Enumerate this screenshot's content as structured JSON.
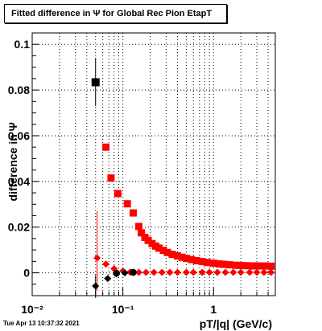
{
  "title": "Fitted difference in  Ψ  for Global Rec Pion EtapT",
  "timestamp": "Tue Apr 13 10:37:32 2021",
  "chart_data": {
    "type": "scatter",
    "x_scale": "log",
    "xlim": [
      0.01,
      4.8
    ],
    "ylim": [
      -0.01,
      0.105
    ],
    "grid": true,
    "xlabel": "pT/|q| (GeV/c)",
    "ylabel": "difference in  Ψ",
    "x_ticks": [
      {
        "value": 0.01,
        "label": "10⁻²"
      },
      {
        "value": 0.1,
        "label": "10⁻¹"
      },
      {
        "value": 1,
        "label": "1"
      }
    ],
    "y_ticks": [
      {
        "value": 0,
        "label": "0"
      },
      {
        "value": 0.02,
        "label": "0.02"
      },
      {
        "value": 0.04,
        "label": "0.04"
      },
      {
        "value": 0.06,
        "label": "0.06"
      },
      {
        "value": 0.08,
        "label": "0.08"
      },
      {
        "value": 0.1,
        "label": "0.1"
      }
    ],
    "series": [
      {
        "color": "#ff0000",
        "marker": "square",
        "points": [
          [
            0.065,
            0.055
          ],
          [
            0.074,
            0.0415
          ],
          [
            0.088,
            0.0347
          ],
          [
            0.112,
            0.0302
          ],
          [
            0.13,
            0.0262
          ],
          [
            0.15,
            0.0203
          ],
          [
            0.16,
            0.0175
          ],
          [
            0.175,
            0.0155
          ],
          [
            0.19,
            0.0142
          ],
          [
            0.21,
            0.0128
          ],
          [
            0.23,
            0.0117
          ],
          [
            0.25,
            0.0108
          ],
          [
            0.28,
            0.0098
          ],
          [
            0.31,
            0.0089
          ],
          [
            0.35,
            0.0081
          ],
          [
            0.4,
            0.0074
          ],
          [
            0.45,
            0.0068
          ],
          [
            0.5,
            0.0063
          ],
          [
            0.57,
            0.0058
          ],
          [
            0.65,
            0.0053
          ],
          [
            0.75,
            0.0049
          ],
          [
            0.85,
            0.0045
          ],
          [
            1.0,
            0.0042
          ],
          [
            1.15,
            0.0039
          ],
          [
            1.3,
            0.0037
          ],
          [
            1.5,
            0.0035
          ],
          [
            1.75,
            0.0033
          ],
          [
            2.0,
            0.0032
          ],
          [
            2.3,
            0.0031
          ],
          [
            2.7,
            0.003
          ],
          [
            3.2,
            0.003
          ],
          [
            3.7,
            0.003
          ],
          [
            4.3,
            0.0029
          ]
        ]
      },
      {
        "color": "#ff0000",
        "marker": "diamond",
        "points": [
          [
            0.052,
            0.0065
          ],
          [
            0.065,
            0.0038
          ],
          [
            0.08,
            0.0018
          ],
          [
            0.1,
            0.0008
          ],
          [
            0.12,
            0.0003
          ],
          [
            0.15,
            0.0002
          ],
          [
            0.18,
            0.0002
          ],
          [
            0.22,
            0.0002
          ],
          [
            0.27,
            0.0002
          ],
          [
            0.33,
            0.0002
          ],
          [
            0.4,
            0.0002
          ],
          [
            0.5,
            0.0002
          ],
          [
            0.6,
            0.0002
          ],
          [
            0.75,
            0.0002
          ],
          [
            0.9,
            0.0002
          ],
          [
            1.1,
            0.0002
          ],
          [
            1.35,
            0.0002
          ],
          [
            1.65,
            0.0002
          ],
          [
            2.0,
            0.0002
          ],
          [
            2.5,
            0.0002
          ],
          [
            3.0,
            0.0002
          ],
          [
            3.6,
            0.0002
          ],
          [
            4.3,
            0.0002
          ]
        ],
        "error_bars": [
          {
            "x": 0.052,
            "low": -0.008,
            "high": 0.027
          }
        ]
      },
      {
        "color": "#000000",
        "marker": "square",
        "points": [
          [
            0.05,
            0.0834
          ]
        ],
        "error_bars": [
          {
            "x": 0.05,
            "low": 0.073,
            "high": 0.094
          }
        ]
      },
      {
        "color": "#000000",
        "marker": "diamond",
        "points": [
          [
            0.05,
            -0.0058
          ],
          [
            0.068,
            -0.0025
          ],
          [
            0.085,
            -0.0005
          ],
          [
            0.105,
            0.0
          ],
          [
            0.13,
            0.0001
          ]
        ],
        "error_bars": [
          {
            "x": 0.05,
            "low": -0.011,
            "high": -0.001
          }
        ]
      },
      {
        "color": "#000000",
        "marker": "circle",
        "points": [
          [
            0.085,
            -0.0002
          ],
          [
            0.13,
            0.0002
          ]
        ]
      }
    ]
  }
}
